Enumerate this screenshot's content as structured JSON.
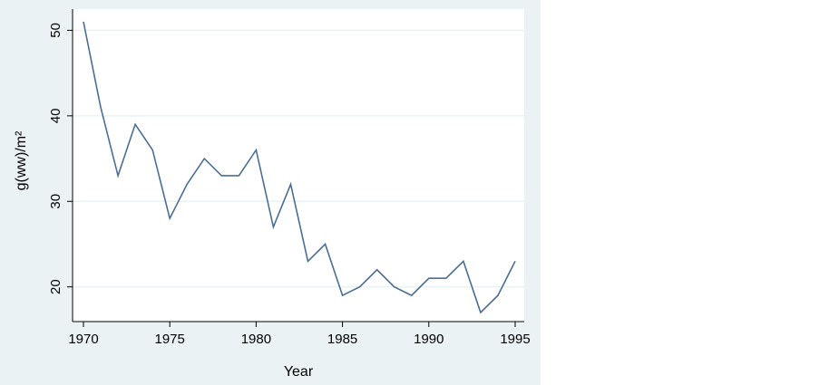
{
  "chart_data": {
    "type": "line",
    "xlabel": "Year",
    "ylabel": "g(ww)/m²",
    "xlim": [
      1970,
      1995
    ],
    "ylim": [
      17,
      51
    ],
    "x_ticks": [
      1970,
      1975,
      1980,
      1985,
      1990,
      1995
    ],
    "y_ticks": [
      20,
      30,
      40,
      50
    ],
    "grid": true,
    "legend": "none",
    "colors": {
      "line": "#4a6e96",
      "plot_background": "#ffffff",
      "frame_background": "#eaf2f3",
      "grid": "#eaf2f3",
      "axis": "#000000"
    },
    "series": [
      {
        "x": [
          1970,
          1971,
          1972,
          1973,
          1974,
          1975,
          1976,
          1977,
          1978,
          1979,
          1980,
          1981,
          1982,
          1983,
          1984,
          1985,
          1986,
          1987,
          1988,
          1989,
          1990,
          1991,
          1992,
          1993,
          1994,
          1995
        ],
        "values": [
          51,
          41,
          33,
          39,
          36,
          28,
          32,
          35,
          33,
          33,
          36,
          27,
          32,
          23,
          25,
          19,
          20,
          22,
          20,
          19,
          21,
          21,
          23,
          17,
          19,
          23
        ]
      }
    ]
  }
}
